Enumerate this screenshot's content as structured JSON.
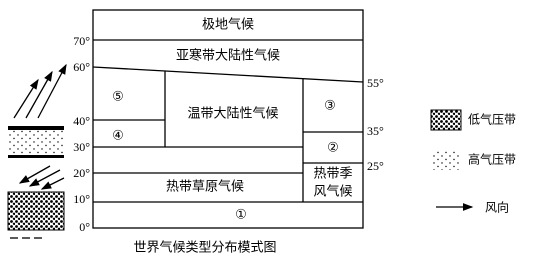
{
  "diagram": {
    "caption": "世界气候类型分布模式图",
    "latitudes_left": [
      "70°",
      "60°",
      "40°",
      "30°",
      "20°",
      "10°",
      "0°"
    ],
    "latitudes_right": [
      "55°",
      "35°",
      "25°"
    ],
    "zones": {
      "polar": "极地气候",
      "subarctic": "亚寒带大陆性气候",
      "temperate_continental": "温带大陆性气候",
      "tropical_savanna": "热带草原气候",
      "tropical_monsoon": [
        "热带季",
        "风气候"
      ]
    },
    "markers": [
      "①",
      "②",
      "③",
      "④",
      "⑤"
    ],
    "legend": [
      "低气压带",
      "高气压带",
      "风向"
    ]
  }
}
